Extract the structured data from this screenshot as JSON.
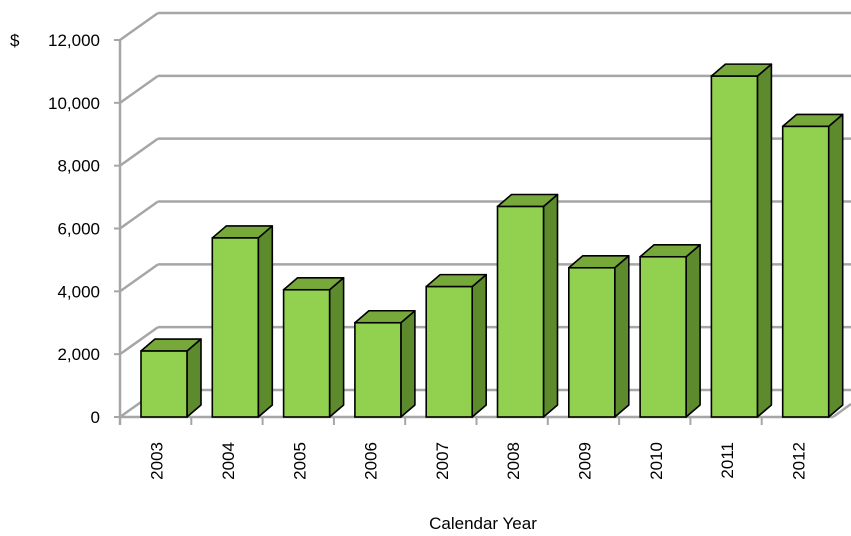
{
  "chart_data": {
    "type": "bar",
    "title": "",
    "xlabel": "Calendar Year",
    "ylabel": "",
    "currency_symbol": "$",
    "categories": [
      "2003",
      "2004",
      "2005",
      "2006",
      "2007",
      "2008",
      "2009",
      "2010",
      "2011",
      "2012"
    ],
    "values": [
      2100,
      5700,
      4050,
      3000,
      4150,
      6700,
      4750,
      5100,
      10850,
      9250
    ],
    "yticks": [
      "0",
      "2,000",
      "4,000",
      "6,000",
      "8,000",
      "10,000",
      "12,000"
    ],
    "ylim": [
      0,
      12000
    ],
    "grid": true,
    "legend": "none",
    "colors": {
      "bar_front": "#92d050",
      "bar_top": "#76a83a",
      "bar_side": "#5d8a2c",
      "bar_outline": "#000000",
      "grid": "#a6a6a6"
    }
  }
}
